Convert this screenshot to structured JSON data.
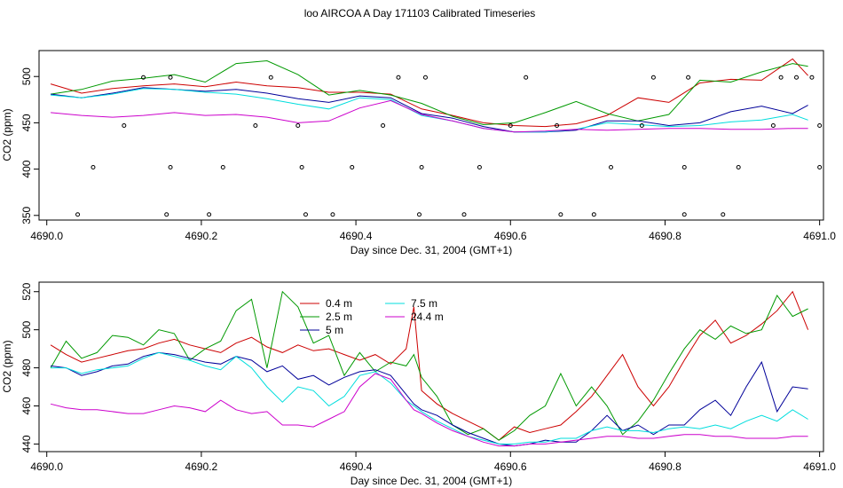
{
  "figure": {
    "title": "loo AIRCOA A  Day 171103  Calibrated Timeseries"
  },
  "chart_data": [
    {
      "type": "line",
      "panel": "top",
      "xlabel": "Day since Dec. 31, 2004 (GMT+1)",
      "ylabel": "CO2 (ppm)",
      "xlim": [
        4689.99,
        4691.005
      ],
      "ylim": [
        345,
        528
      ],
      "xticks": [
        4690.0,
        4690.2,
        4690.4,
        4690.6,
        4690.8,
        4691.0
      ],
      "xtick_labels": [
        "4690.0",
        "4690.2",
        "4690.4",
        "4690.6",
        "4690.8",
        "4691.0"
      ],
      "yticks": [
        350,
        400,
        450,
        500
      ],
      "ytick_labels": [
        "350",
        "400",
        "450",
        "500"
      ],
      "grid": false,
      "legend": null,
      "x": [
        4690.005,
        4690.045,
        4690.085,
        4690.125,
        4690.165,
        4690.205,
        4690.245,
        4690.285,
        4690.325,
        4690.365,
        4690.405,
        4690.445,
        4690.485,
        4690.525,
        4690.565,
        4690.605,
        4690.645,
        4690.685,
        4690.725,
        4690.765,
        4690.805,
        4690.845,
        4690.885,
        4690.925,
        4690.965,
        4690.985
      ],
      "series": [
        {
          "color": "#cc0000",
          "values": [
            492,
            482,
            487,
            490,
            492,
            489,
            494,
            490,
            488,
            483,
            483,
            481,
            465,
            458,
            450,
            447,
            446,
            449,
            458,
            477,
            472,
            493,
            497,
            496,
            519,
            501
          ]
        },
        {
          "color": "#009900",
          "values": [
            481,
            486,
            495,
            498,
            502,
            494,
            514,
            517,
            502,
            480,
            485,
            480,
            471,
            457,
            448,
            450,
            461,
            473,
            460,
            452,
            459,
            496,
            494,
            505,
            514,
            511
          ]
        },
        {
          "color": "#000099",
          "values": [
            481,
            477,
            482,
            488,
            486,
            484,
            486,
            482,
            476,
            472,
            479,
            477,
            460,
            455,
            446,
            440,
            440,
            442,
            452,
            452,
            447,
            450,
            462,
            468,
            460,
            469
          ]
        },
        {
          "color": "#00dddd",
          "values": [
            480,
            477,
            481,
            487,
            486,
            483,
            481,
            476,
            470,
            465,
            477,
            475,
            458,
            452,
            444,
            440,
            440,
            443,
            450,
            448,
            446,
            447,
            451,
            453,
            459,
            453
          ]
        },
        {
          "color": "#cc00cc",
          "values": [
            461,
            458,
            456,
            458,
            461,
            458,
            459,
            456,
            450,
            452,
            466,
            474,
            459,
            452,
            444,
            440,
            441,
            443,
            442,
            443,
            444,
            444,
            443,
            443,
            444,
            444
          ]
        }
      ],
      "points": {
        "x": [
          4690.04,
          4690.06,
          4690.1,
          4690.125,
          4690.155,
          4690.16,
          4690.16,
          4690.21,
          4690.228,
          4690.27,
          4690.29,
          4690.325,
          4690.33,
          4690.335,
          4690.37,
          4690.395,
          4690.435,
          4690.455,
          4690.482,
          4690.485,
          4690.49,
          4690.54,
          4690.56,
          4690.6,
          4690.62,
          4690.66,
          4690.665,
          4690.708,
          4690.73,
          4690.77,
          4690.785,
          4690.825,
          4690.825,
          4690.83,
          4690.875,
          4690.895,
          4690.94,
          4690.95,
          4690.97,
          4690.99,
          4691.0,
          4691.0
        ],
        "y": [
          351,
          402,
          447,
          499,
          351,
          402,
          499,
          351,
          402,
          447,
          499,
          447,
          402,
          351,
          351,
          402,
          447,
          499,
          351,
          402,
          499,
          351,
          402,
          447,
          499,
          447,
          351,
          351,
          402,
          447,
          499,
          402,
          351,
          499,
          351,
          402,
          447,
          499,
          499,
          499,
          402,
          447
        ]
      }
    },
    {
      "type": "line",
      "panel": "bottom",
      "xlabel": "Day since Dec. 31, 2004 (GMT+1)",
      "ylabel": "CO2 (ppm)",
      "xlim": [
        4689.99,
        4691.005
      ],
      "ylim": [
        436,
        525
      ],
      "xticks": [
        4690.0,
        4690.2,
        4690.4,
        4690.6,
        4690.8,
        4691.0
      ],
      "xtick_labels": [
        "4690.0",
        "4690.2",
        "4690.4",
        "4690.6",
        "4690.8",
        "4691.0"
      ],
      "yticks": [
        440,
        460,
        480,
        500,
        520
      ],
      "ytick_labels": [
        "440",
        "460",
        "480",
        "500",
        "520"
      ],
      "grid": false,
      "legend": "top-left",
      "x": [
        4690.005,
        4690.025,
        4690.045,
        4690.065,
        4690.085,
        4690.105,
        4690.125,
        4690.145,
        4690.165,
        4690.185,
        4690.205,
        4690.225,
        4690.245,
        4690.265,
        4690.285,
        4690.305,
        4690.325,
        4690.345,
        4690.365,
        4690.385,
        4690.405,
        4690.425,
        4690.445,
        4690.465,
        4690.475,
        4690.485,
        4690.505,
        4690.525,
        4690.545,
        4690.565,
        4690.585,
        4690.605,
        4690.625,
        4690.645,
        4690.665,
        4690.685,
        4690.705,
        4690.725,
        4690.745,
        4690.765,
        4690.785,
        4690.805,
        4690.825,
        4690.845,
        4690.865,
        4690.885,
        4690.905,
        4690.925,
        4690.945,
        4690.965,
        4690.985
      ],
      "series": [
        {
          "name": "0.4 m",
          "color": "#cc0000",
          "values": [
            492,
            487,
            483,
            485,
            487,
            489,
            490,
            493,
            495,
            492,
            490,
            488,
            493,
            496,
            491,
            488,
            492,
            489,
            490,
            487,
            484,
            487,
            482,
            490,
            512,
            468,
            461,
            456,
            452,
            448,
            442,
            449,
            446,
            448,
            450,
            457,
            465,
            476,
            487,
            470,
            460,
            470,
            484,
            497,
            505,
            493,
            497,
            503,
            510,
            520,
            500
          ]
        },
        {
          "name": "2.5 m",
          "color": "#009900",
          "values": [
            480,
            494,
            485,
            488,
            497,
            496,
            492,
            500,
            498,
            484,
            490,
            494,
            510,
            516,
            480,
            520,
            512,
            493,
            497,
            476,
            488,
            478,
            483,
            481,
            487,
            475,
            465,
            450,
            445,
            448,
            442,
            447,
            455,
            460,
            477,
            460,
            470,
            460,
            445,
            452,
            463,
            477,
            490,
            500,
            495,
            502,
            498,
            500,
            518,
            507,
            511
          ]
        },
        {
          "name": "5 m",
          "color": "#000099",
          "values": [
            481,
            480,
            476,
            478,
            481,
            482,
            486,
            488,
            487,
            485,
            483,
            482,
            486,
            484,
            478,
            481,
            474,
            476,
            471,
            475,
            478,
            479,
            476,
            466,
            461,
            458,
            455,
            450,
            446,
            443,
            440,
            439,
            440,
            442,
            441,
            441,
            447,
            455,
            447,
            450,
            445,
            450,
            450,
            458,
            463,
            455,
            470,
            483,
            457,
            470,
            469
          ]
        },
        {
          "name": "7.5 m",
          "color": "#00dddd",
          "values": [
            480,
            480,
            477,
            479,
            480,
            481,
            485,
            488,
            486,
            484,
            481,
            479,
            486,
            480,
            470,
            462,
            470,
            468,
            460,
            465,
            476,
            478,
            472,
            463,
            460,
            457,
            452,
            448,
            444,
            442,
            440,
            440,
            441,
            441,
            443,
            443,
            447,
            449,
            447,
            447,
            446,
            448,
            449,
            448,
            450,
            448,
            452,
            455,
            452,
            458,
            453
          ]
        },
        {
          "name": "24.4 m",
          "color": "#cc00cc",
          "values": [
            461,
            459,
            458,
            458,
            457,
            456,
            456,
            458,
            460,
            459,
            457,
            463,
            458,
            456,
            457,
            450,
            450,
            449,
            453,
            457,
            470,
            477,
            474,
            463,
            458,
            456,
            451,
            447,
            444,
            441,
            439,
            439,
            440,
            440,
            441,
            442,
            443,
            444,
            444,
            443,
            443,
            444,
            445,
            445,
            444,
            444,
            443,
            443,
            443,
            444,
            444
          ]
        }
      ]
    }
  ]
}
